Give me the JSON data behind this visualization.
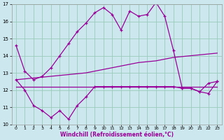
{
  "xlabel": "Windchill (Refroidissement éolien,°C)",
  "bg_color": "#cce8ee",
  "grid_color": "#99ccbb",
  "line_color": "#990099",
  "x": [
    0,
    1,
    2,
    3,
    4,
    5,
    6,
    7,
    8,
    9,
    10,
    11,
    12,
    13,
    14,
    15,
    16,
    17,
    18,
    19,
    20,
    21,
    22,
    23
  ],
  "line1": [
    14.6,
    13.1,
    12.6,
    12.8,
    13.3,
    14.0,
    14.7,
    15.4,
    15.9,
    16.5,
    16.8,
    16.4,
    15.5,
    16.6,
    16.3,
    16.4,
    17.1,
    16.3,
    14.3,
    12.1,
    12.1,
    11.9,
    12.4,
    12.5
  ],
  "line2": [
    12.6,
    12.0,
    11.1,
    10.8,
    10.4,
    10.8,
    10.3,
    11.1,
    11.6,
    12.2,
    12.2,
    12.2,
    12.2,
    12.2,
    12.2,
    12.2,
    12.2,
    12.2,
    12.2,
    12.1,
    12.1,
    11.9,
    11.8,
    12.5
  ],
  "line3": [
    12.6,
    12.65,
    12.7,
    12.75,
    12.8,
    12.85,
    12.9,
    12.95,
    13.0,
    13.1,
    13.2,
    13.3,
    13.4,
    13.5,
    13.6,
    13.65,
    13.7,
    13.8,
    13.9,
    13.95,
    14.0,
    14.05,
    14.1,
    14.15
  ],
  "line4": [
    12.2,
    12.2,
    12.2,
    12.2,
    12.2,
    12.2,
    12.2,
    12.2,
    12.2,
    12.2,
    12.2,
    12.2,
    12.2,
    12.2,
    12.2,
    12.2,
    12.2,
    12.2,
    12.2,
    12.2,
    12.2,
    12.2,
    12.2,
    12.2
  ],
  "ylim": [
    10,
    17
  ],
  "yticks": [
    10,
    11,
    12,
    13,
    14,
    15,
    16,
    17
  ],
  "xlim": [
    -0.5,
    23.5
  ]
}
